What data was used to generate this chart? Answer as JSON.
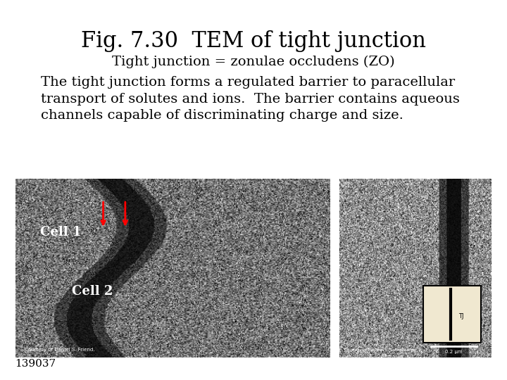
{
  "title": "Fig. 7.30  TEM of tight junction",
  "subtitle": "Tight junction = zonulae occludens (ZO)",
  "body_text": "The tight junction forms a regulated barrier to paracellular\ntransport of solutes and ions.  The barrier contains aqueous\nchannels capable of discriminating charge and size.",
  "footer_text": "139037",
  "bg_color": "#ffffff",
  "text_color": "#000000",
  "title_fontsize": 22,
  "subtitle_fontsize": 14,
  "body_fontsize": 14,
  "footer_fontsize": 11,
  "cell1_label": "Cell 1",
  "cell2_label": "Cell 2",
  "label_color": "#ffffff",
  "label_fontsize": 13
}
